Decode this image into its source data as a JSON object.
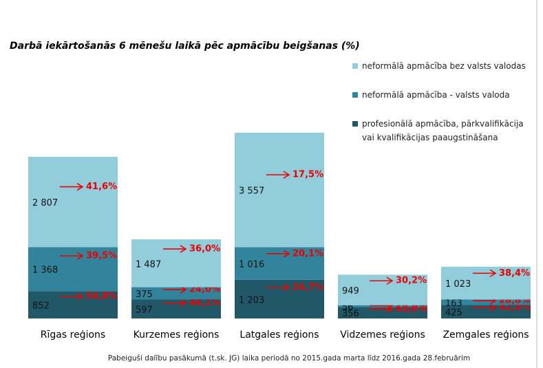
{
  "chart_data": {
    "type": "stacked_bar",
    "title": "Darbā iekārtošanās 6 mēnešu laikā pēc apmācību beigšanas (%)",
    "footnote": "Pabeiguši dalību pasākumā (t.sk. JG) laika periodā no 2015.gada marta līdz 2016.gada  28.februārim",
    "categories": [
      "Rīgas reģions",
      "Kurzemes reģions",
      "Latgales reģions",
      "Vidzemes reģions",
      "Zemgales reģions"
    ],
    "ylim": [
      0,
      6000
    ],
    "legend": "top-right",
    "series": [
      {
        "name": "profesionālā apmācība, pārkvalifikācija vai kvalifikācijas paaugstināšana",
        "color": "#215868",
        "values": [
          852,
          597,
          1203,
          356,
          425
        ],
        "value_labels": [
          "852",
          "597",
          "1 203",
          "356",
          "425"
        ],
        "percent_labels": [
          "54,8%",
          "44,1%",
          "24,7%",
          "41,6%",
          "42,8%"
        ]
      },
      {
        "name": "neformālā apmācība - valsts valoda",
        "color": "#31849b",
        "values": [
          1368,
          375,
          1016,
          56,
          163
        ],
        "value_labels": [
          "1 368",
          "375",
          "1 016",
          "56",
          "163"
        ],
        "percent_labels": [
          "39,5%",
          "24,0%",
          "20,1%",
          "26,8%",
          "28,8%"
        ]
      },
      {
        "name": "neformālā apmācība bez valsts valodas",
        "color": "#92cddc",
        "values": [
          2807,
          1487,
          3557,
          949,
          1023
        ],
        "value_labels": [
          "2 807",
          "1 487",
          "3 557",
          "949",
          "1 023"
        ],
        "percent_labels": [
          "41,6%",
          "36,0%",
          "17,5%",
          "30,2%",
          "38,4%"
        ]
      }
    ]
  }
}
